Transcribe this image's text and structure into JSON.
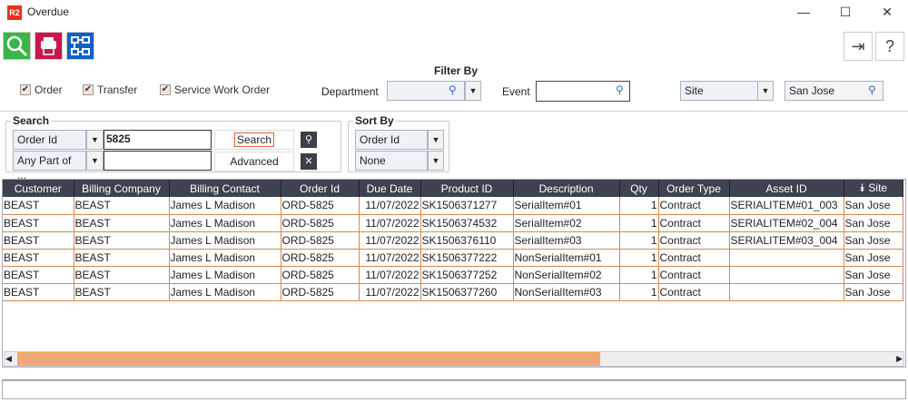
{
  "window": {
    "title": "Overdue",
    "logo": "R2",
    "minimize": "—",
    "maximize": "☐",
    "close": "✕"
  },
  "toolbar": {
    "search_icon": "search-icon",
    "print_icon": "print-icon",
    "layout_icon": "hierarchy-icon",
    "exit_icon": "exit-icon",
    "help": "?"
  },
  "filters": {
    "order": "Order",
    "transfer": "Transfer",
    "service_work_order": "Service Work Order",
    "filter_by": "Filter By",
    "department_label": "Department",
    "department_value": "",
    "event_label": "Event",
    "event_value": "",
    "site_select": "Site",
    "site_value": "San Jose"
  },
  "search": {
    "legend": "Search",
    "field1": "Order Id",
    "value1": "5825",
    "field2": "Any Part of ...",
    "value2": "",
    "search_button": "Search",
    "advanced_button": "Advanced"
  },
  "sort": {
    "legend": "Sort By",
    "field1": "Order Id",
    "field2": "None"
  },
  "table": {
    "columns": [
      "Customer",
      "Billing Company",
      "Billing Contact",
      "Order Id",
      "Due Date",
      "Product ID",
      "Description",
      "Qty",
      "Order Type",
      "Asset ID",
      "Site"
    ],
    "rows": [
      [
        "BEAST",
        "BEAST",
        "James L Madison",
        "ORD-5825",
        "11/07/2022",
        "SK1506371277",
        "SerialItem#01",
        "1",
        "Contract",
        "SERIALITEM#01_003",
        "San Jose"
      ],
      [
        "BEAST",
        "BEAST",
        "James L Madison",
        "ORD-5825",
        "11/07/2022",
        "SK1506374532",
        "SerialItem#02",
        "1",
        "Contract",
        "SERIALITEM#02_004",
        "San Jose"
      ],
      [
        "BEAST",
        "BEAST",
        "James L Madison",
        "ORD-5825",
        "11/07/2022",
        "SK1506376110",
        "SerialItem#03",
        "1",
        "Contract",
        "SERIALITEM#03_004",
        "San Jose"
      ],
      [
        "BEAST",
        "BEAST",
        "James L Madison",
        "ORD-5825",
        "11/07/2022",
        "SK1506377222",
        "NonSerialItem#01",
        "1",
        "Contract",
        "",
        "San Jose"
      ],
      [
        "BEAST",
        "BEAST",
        "James L Madison",
        "ORD-5825",
        "11/07/2022",
        "SK1506377252",
        "NonSerialItem#02",
        "1",
        "Contract",
        "",
        "San Jose"
      ],
      [
        "BEAST",
        "BEAST",
        "James L Madison",
        "ORD-5825",
        "11/07/2022",
        "SK1506377260",
        "NonSerialItem#03",
        "1",
        "Contract",
        "",
        "San Jose"
      ]
    ]
  },
  "colors": {
    "accent": "#d08a55",
    "header": "#3c4250",
    "scrollbar": "#f0a878"
  }
}
